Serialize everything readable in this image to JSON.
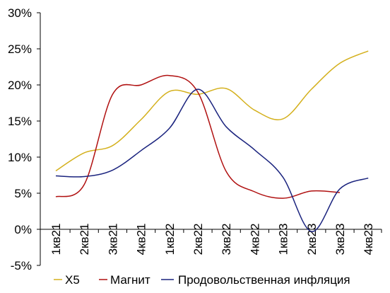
{
  "chart_data": {
    "type": "line",
    "categories": [
      "1кв21",
      "2кв21",
      "3кв21",
      "4кв21",
      "1кв22",
      "2кв22",
      "3кв22",
      "4кв22",
      "1кв23",
      "2кв23",
      "3кв23",
      "4кв23"
    ],
    "y_ticks": [
      "30%",
      "25%",
      "20%",
      "15%",
      "10%",
      "5%",
      "0%",
      "-5%"
    ],
    "ylim": [
      -5,
      30
    ],
    "grid": false,
    "legend_position": "bottom",
    "series": [
      {
        "name": "X5",
        "color": "#d4b01c",
        "values": [
          8.1,
          10.6,
          11.6,
          15.2,
          19.1,
          18.7,
          19.5,
          16.5,
          15.3,
          19.4,
          23.0,
          24.7
        ]
      },
      {
        "name": "Магнит",
        "color": "#b01010",
        "values": [
          4.5,
          6.2,
          18.7,
          20.0,
          21.3,
          19.0,
          8.0,
          5.2,
          4.3,
          5.3,
          5.1,
          null
        ]
      },
      {
        "name": "Продовольственная инфляция",
        "color": "#1a237e",
        "values": [
          7.4,
          7.3,
          8.2,
          10.9,
          14.0,
          19.4,
          14.2,
          11.0,
          7.2,
          -0.3,
          5.6,
          7.1
        ]
      }
    ]
  }
}
